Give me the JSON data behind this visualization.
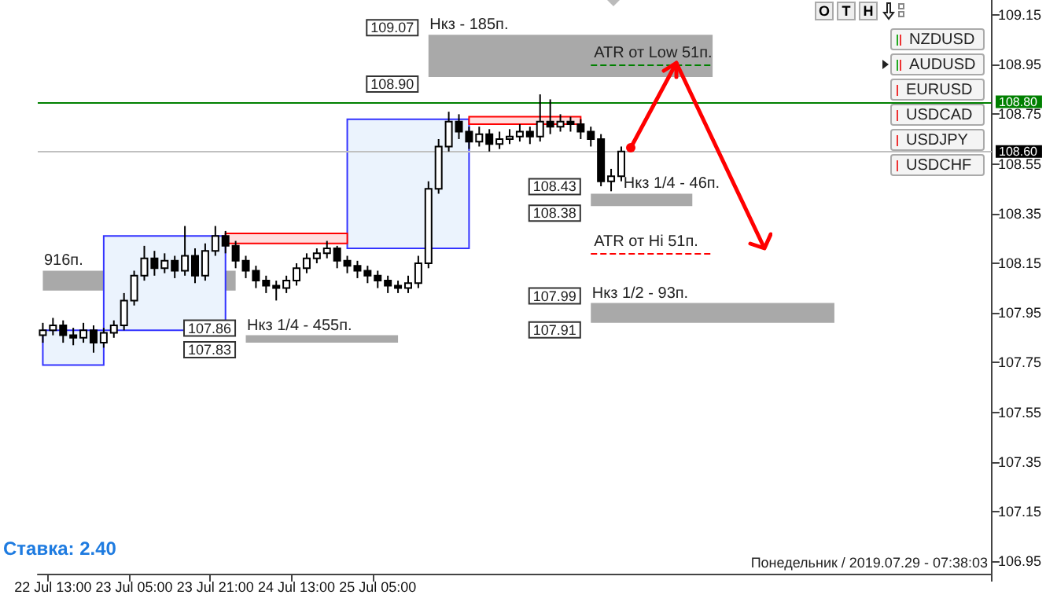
{
  "chart_data": {
    "type": "candlestick",
    "color": "#000000",
    "categories": [
      null,
      "22 Jul 13:00",
      null,
      null,
      null,
      null,
      null,
      null,
      null,
      "23 Jul 05:00",
      null,
      null,
      null,
      null,
      null,
      null,
      null,
      "23 Jul 21:00",
      null,
      null,
      null,
      null,
      null,
      null,
      null,
      "24 Jul 13:00",
      null,
      null,
      null,
      null,
      null,
      null,
      null,
      "25 Jul 05:00",
      null,
      null,
      null,
      null,
      null,
      null,
      null,
      null,
      null,
      null,
      null,
      null,
      null,
      null,
      null,
      null,
      null,
      null,
      null,
      null,
      null,
      null,
      null,
      null,
      null,
      null,
      null,
      null,
      null,
      null,
      null,
      null,
      null,
      null,
      null,
      null,
      null,
      null,
      null,
      null,
      null,
      null,
      null,
      null,
      null,
      null,
      null,
      null,
      null,
      null,
      null,
      null,
      null,
      null,
      null,
      null,
      null,
      null,
      null,
      null
    ],
    "ohlc": [
      [
        107.86,
        107.91,
        107.83,
        107.88
      ],
      [
        107.88,
        107.93,
        107.86,
        107.9
      ],
      [
        107.9,
        107.92,
        107.83,
        107.86
      ],
      [
        107.86,
        107.89,
        107.82,
        107.85
      ],
      [
        107.85,
        107.91,
        107.83,
        107.88
      ],
      [
        107.88,
        107.9,
        107.79,
        107.83
      ],
      [
        107.83,
        107.89,
        107.81,
        107.87
      ],
      [
        107.87,
        107.92,
        107.85,
        107.9
      ],
      [
        107.9,
        108.03,
        107.88,
        108.0
      ],
      [
        108.0,
        108.12,
        107.98,
        108.1
      ],
      [
        108.1,
        108.22,
        108.08,
        108.17
      ],
      [
        108.17,
        108.2,
        108.1,
        108.13
      ],
      [
        108.13,
        108.19,
        108.11,
        108.16
      ],
      [
        108.16,
        108.18,
        108.09,
        108.12
      ],
      [
        108.12,
        108.3,
        108.1,
        108.18
      ],
      [
        108.18,
        108.21,
        108.07,
        108.1
      ],
      [
        108.1,
        108.23,
        108.08,
        108.2
      ],
      [
        108.2,
        108.3,
        108.18,
        108.26
      ],
      [
        108.26,
        108.28,
        108.19,
        108.22
      ],
      [
        108.22,
        108.24,
        108.13,
        108.16
      ],
      [
        108.16,
        108.18,
        108.09,
        108.12
      ],
      [
        108.12,
        108.14,
        108.05,
        108.08
      ],
      [
        108.08,
        108.1,
        108.03,
        108.06
      ],
      [
        108.06,
        108.08,
        108.0,
        108.05
      ],
      [
        108.05,
        108.1,
        108.03,
        108.08
      ],
      [
        108.08,
        108.15,
        108.06,
        108.13
      ],
      [
        108.13,
        108.19,
        108.11,
        108.17
      ],
      [
        108.17,
        108.21,
        108.15,
        108.19
      ],
      [
        108.19,
        108.24,
        108.17,
        108.21
      ],
      [
        108.21,
        108.22,
        108.13,
        108.16
      ],
      [
        108.16,
        108.18,
        108.11,
        108.14
      ],
      [
        108.14,
        108.16,
        108.09,
        108.12
      ],
      [
        108.12,
        108.14,
        108.07,
        108.1
      ],
      [
        108.1,
        108.12,
        108.05,
        108.08
      ],
      [
        108.08,
        108.1,
        108.03,
        108.06
      ],
      [
        108.06,
        108.08,
        108.03,
        108.05
      ],
      [
        108.05,
        108.1,
        108.03,
        108.07
      ],
      [
        108.07,
        108.18,
        108.05,
        108.15
      ],
      [
        108.15,
        108.48,
        108.13,
        108.45
      ],
      [
        108.45,
        108.65,
        108.43,
        108.62
      ],
      [
        108.62,
        108.76,
        108.6,
        108.72
      ],
      [
        108.72,
        108.75,
        108.65,
        108.68
      ],
      [
        108.68,
        108.7,
        108.61,
        108.64
      ],
      [
        108.64,
        108.7,
        108.62,
        108.67
      ],
      [
        108.67,
        108.69,
        108.6,
        108.63
      ],
      [
        108.63,
        108.68,
        108.61,
        108.65
      ],
      [
        108.65,
        108.69,
        108.63,
        108.66
      ],
      [
        108.66,
        108.71,
        108.64,
        108.68
      ],
      [
        108.68,
        108.7,
        108.63,
        108.66
      ],
      [
        108.66,
        108.83,
        108.64,
        108.72
      ],
      [
        108.72,
        108.81,
        108.67,
        108.7
      ],
      [
        108.7,
        108.75,
        108.68,
        108.72
      ],
      [
        108.72,
        108.74,
        108.68,
        108.71
      ],
      [
        108.71,
        108.73,
        108.65,
        108.68
      ],
      [
        108.68,
        108.7,
        108.62,
        108.65
      ],
      [
        108.65,
        108.67,
        108.46,
        108.48
      ],
      [
        108.48,
        108.53,
        108.44,
        108.5
      ],
      [
        108.5,
        108.62,
        108.48,
        108.6
      ],
      null,
      null,
      null,
      null,
      null,
      null,
      null,
      null,
      null,
      null,
      null,
      null,
      null,
      null,
      null,
      null,
      null,
      null,
      null,
      null,
      null,
      null,
      null,
      null,
      null,
      null,
      null,
      null,
      null,
      null,
      null,
      null,
      null,
      null,
      null,
      null
    ],
    "ylim": [
      106.9,
      109.21
    ],
    "yticks": [
      106.95,
      107.15,
      107.35,
      107.55,
      107.75,
      107.95,
      108.15,
      108.35,
      108.55,
      108.75,
      108.95,
      109.15
    ],
    "ref_lines": [
      {
        "axis": "y",
        "value": 108.8,
        "label": "108.80",
        "color": "#008000"
      },
      {
        "axis": "y",
        "value": 108.6,
        "label": "108.60",
        "color": "#c0c0c0"
      },
      {
        "axis": "y",
        "value": 108.95,
        "label": "ATR от Low 51п.",
        "color": "#008000",
        "line_style": "dashed"
      },
      {
        "axis": "y",
        "value": 108.19,
        "label": "ATR от Hi 51п.",
        "color": "#ff0000",
        "line_style": "dashed"
      }
    ],
    "bands": [
      {
        "axis": "y",
        "from": 108.9,
        "to": 109.07,
        "label": "Нкз - 185п.",
        "color": "#a9a9a9"
      },
      {
        "axis": "y",
        "from": 108.38,
        "to": 108.43,
        "label": "Нкз 1/4 - 46п.",
        "color": "#a9a9a9"
      },
      {
        "axis": "y",
        "from": 107.91,
        "to": 107.99,
        "label": "Нкз 1/2 - 93п.",
        "color": "#a9a9a9"
      },
      {
        "axis": "y",
        "from": 107.83,
        "to": 107.86,
        "label": "Нкз 1/4 - 455п.",
        "color": "#a9a9a9"
      },
      {
        "axis": "y",
        "from": 108.04,
        "to": 108.12,
        "label": "916п.",
        "color": "#a9a9a9"
      },
      {
        "axis": "y",
        "from": 107.74,
        "to": 107.88,
        "color": "#ebf3fd"
      },
      {
        "axis": "y",
        "from": 107.88,
        "to": 108.26,
        "color": "#ebf3fd"
      },
      {
        "axis": "y",
        "from": 108.21,
        "to": 108.73,
        "color": "#ebf3fd"
      },
      {
        "axis": "y",
        "from": 108.23,
        "to": 108.27,
        "color": "#ffdede"
      },
      {
        "axis": "y",
        "from": 108.71,
        "to": 108.74,
        "color": "#ffdede"
      }
    ],
    "annotations": [
      "Ставка: 2.40",
      "Понедельник / 2019.07.29 - 07:38:03",
      "NZDUSD",
      "AUDUSD",
      "EURUSD",
      "USDCAD",
      "USDJPY",
      "USDCHF",
      "O",
      "T",
      "H",
      "109.07",
      "108.90",
      "108.43",
      "108.38",
      "107.99",
      "107.91",
      "107.86",
      "107.83"
    ]
  }
}
